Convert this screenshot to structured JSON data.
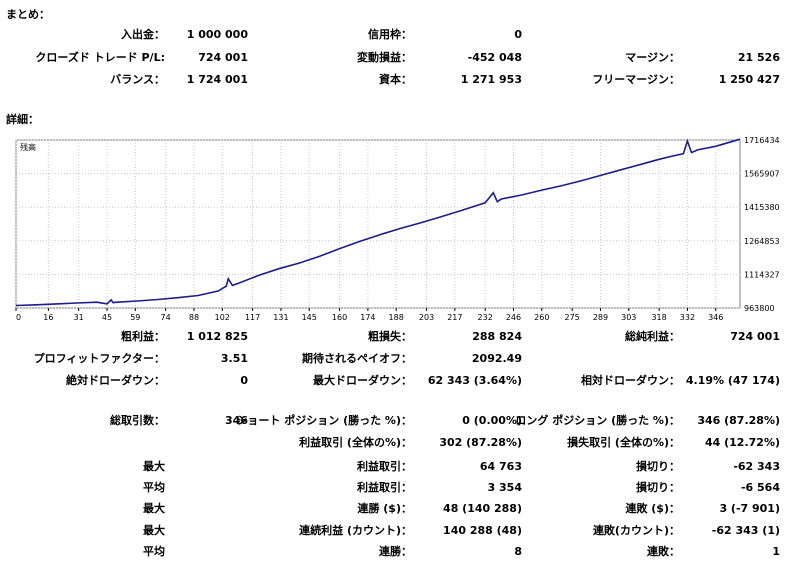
{
  "summary": {
    "title": "まとめ：",
    "deposit_label": "入出金：",
    "deposit_value": "1 000 000",
    "credit_label": "信用枠：",
    "credit_value": "0",
    "closed_pl_label": "クローズド トレード P/L:",
    "closed_pl_value": "724 001",
    "floating_label": "変動損益：",
    "floating_value": "-452 048",
    "margin_label": "マージン：",
    "margin_value": "21 526",
    "balance_label": "バランス：",
    "balance_value": "1 724 001",
    "equity_label": "資本：",
    "equity_value": "1 271 953",
    "free_margin_label": "フリーマージン：",
    "free_margin_value": "1 250 427"
  },
  "details": {
    "title": "詳細："
  },
  "chart_data": {
    "type": "line",
    "title": "残高",
    "x_ticks": [
      0,
      16,
      31,
      45,
      59,
      74,
      88,
      102,
      117,
      131,
      145,
      160,
      174,
      188,
      203,
      217,
      232,
      246,
      260,
      275,
      289,
      303,
      318,
      332,
      346
    ],
    "y_ticks": [
      1716434,
      1565907,
      1415380,
      1264853,
      1114327,
      963800
    ],
    "xlim": [
      0,
      358
    ],
    "ylim": [
      963800,
      1716434
    ],
    "grid": true,
    "color": "#1c1c8c",
    "x": [
      0,
      10,
      20,
      30,
      40,
      45,
      47,
      48,
      50,
      60,
      70,
      80,
      90,
      100,
      104,
      105,
      107,
      110,
      120,
      130,
      140,
      150,
      160,
      170,
      180,
      190,
      200,
      210,
      220,
      232,
      236,
      238,
      240,
      250,
      260,
      270,
      280,
      290,
      300,
      310,
      318,
      325,
      330,
      332,
      334,
      337,
      346,
      358
    ],
    "values": [
      975000,
      978000,
      982000,
      986000,
      990000,
      982000,
      1000000,
      988000,
      990000,
      995000,
      1002000,
      1010000,
      1020000,
      1040000,
      1062000,
      1095000,
      1065000,
      1075000,
      1110000,
      1140000,
      1165000,
      1195000,
      1230000,
      1262000,
      1292000,
      1320000,
      1345000,
      1372000,
      1400000,
      1435000,
      1480000,
      1440000,
      1452000,
      1470000,
      1492000,
      1512000,
      1535000,
      1560000,
      1585000,
      1610000,
      1630000,
      1645000,
      1655000,
      1712000,
      1660000,
      1672000,
      1688000,
      1720000
    ]
  },
  "stats": {
    "gross_profit_label": "粗利益：",
    "gross_profit_value": "1 012 825",
    "gross_loss_label": "粗損失：",
    "gross_loss_value": "288 824",
    "net_profit_label": "総純利益：",
    "net_profit_value": "724 001",
    "profit_factor_label": "プロフィットファクター：",
    "profit_factor_value": "3.51",
    "expected_payoff_label": "期待されるペイオフ：",
    "expected_payoff_value": "2092.49",
    "abs_drawdown_label": "絶対ドローダウン：",
    "abs_drawdown_value": "0",
    "max_drawdown_label": "最大ドローダウン：",
    "max_drawdown_value": "62 343 (3.64%)",
    "rel_drawdown_label": "相対ドローダウン：",
    "rel_drawdown_value": "4.19% (47 174)",
    "total_trades_label": "総取引数：",
    "total_trades_value": "346",
    "short_label": "ショート ポジション (勝った %)：",
    "short_value": "0 (0.00%)",
    "long_label": "ロング ポジション (勝った %)：",
    "long_value": "346 (87.28%)",
    "profit_trades_label": "利益取引 (全体の%)：",
    "profit_trades_value": "302 (87.28%)",
    "loss_trades_label": "損失取引 (全体の%)：",
    "loss_trades_value": "44 (12.72%)",
    "max1_label": "最大",
    "largest_profit_label": "利益取引：",
    "largest_profit_value": "64 763",
    "largest_loss_label": "損切り：",
    "largest_loss_value": "-62 343",
    "avg1_label": "平均",
    "avg_profit_label": "利益取引：",
    "avg_profit_value": "3 354",
    "avg_loss_label": "損切り：",
    "avg_loss_value": "-6 564",
    "max2_label": "最大",
    "max_consec_wins_label": "連勝 ($)：",
    "max_consec_wins_value": "48 (140 288)",
    "max_consec_losses_label": "連敗 ($)：",
    "max_consec_losses_value": "3 (-7 901)",
    "max3_label": "最大",
    "max_consec_profit_label": "連続利益 (カウント)：",
    "max_consec_profit_value": "140 288 (48)",
    "max_consec_loss_label": "連敗(カウント)：",
    "max_consec_loss_value": "-62 343 (1)",
    "avg2_label": "平均",
    "avg_consec_wins_label": "連勝：",
    "avg_consec_wins_value": "8",
    "avg_consec_losses_label": "連敗：",
    "avg_consec_losses_value": "1"
  }
}
